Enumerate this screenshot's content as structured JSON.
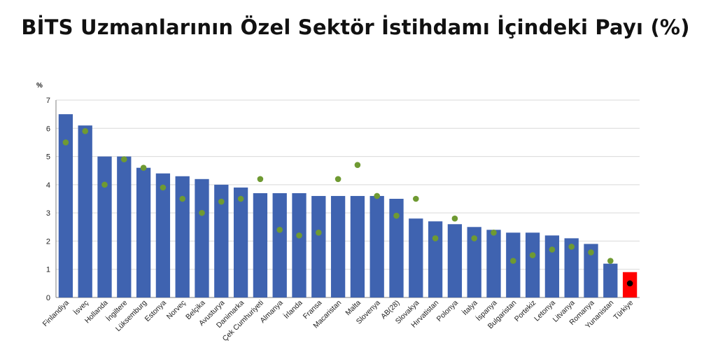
{
  "chart_data": {
    "type": "bar",
    "title": "BİTS Uzmanlarının Özel Sektör İstihdamı İçindeki Payı (%)",
    "ylabel": "%",
    "ylim": [
      0,
      7
    ],
    "yticks": [
      "0",
      "1",
      "2",
      "3",
      "4",
      "5",
      "6",
      "7"
    ],
    "grid": true,
    "categories": [
      "Finlandiya",
      "İsveç",
      "Hollanda",
      "İngiltere",
      "Lüksemburg",
      "Estonya",
      "Norveç",
      "Belçika",
      "Avusturya",
      "Danimarka",
      "Çek Cumhuriyeti",
      "Almanya",
      "İrlanda",
      "Fransa",
      "Macaristan",
      "Malta",
      "Slovenya",
      "AB(28)",
      "Slovakya",
      "Hırvatistan",
      "Polonya",
      "İtalya",
      "İspanya",
      "Bulgaristan",
      "Portekiz",
      "Letonya",
      "Litvanya",
      "Romanya",
      "Yunanistan",
      "Türkiye"
    ],
    "series": [
      {
        "type": "bar",
        "color": "#3f63b0",
        "highlight": {
          "index": 29,
          "color": "#ff0000"
        },
        "values": [
          6.5,
          6.1,
          5.0,
          5.0,
          4.6,
          4.4,
          4.3,
          4.2,
          4.0,
          3.9,
          3.7,
          3.7,
          3.7,
          3.6,
          3.6,
          3.6,
          3.6,
          3.5,
          2.8,
          2.7,
          2.6,
          2.5,
          2.4,
          2.3,
          2.3,
          2.2,
          2.1,
          1.9,
          1.2,
          0.9
        ]
      },
      {
        "type": "scatter",
        "color": "#6f9a32",
        "highlight": {
          "index": 29,
          "color": "#000000"
        },
        "values": [
          5.5,
          5.9,
          4.0,
          4.9,
          4.6,
          3.9,
          3.5,
          3.0,
          3.4,
          3.5,
          4.2,
          2.4,
          2.2,
          2.3,
          4.2,
          4.7,
          3.6,
          2.9,
          3.5,
          2.1,
          2.8,
          2.1,
          2.3,
          1.3,
          1.5,
          1.7,
          1.8,
          1.6,
          1.3,
          0.5
        ]
      }
    ]
  }
}
